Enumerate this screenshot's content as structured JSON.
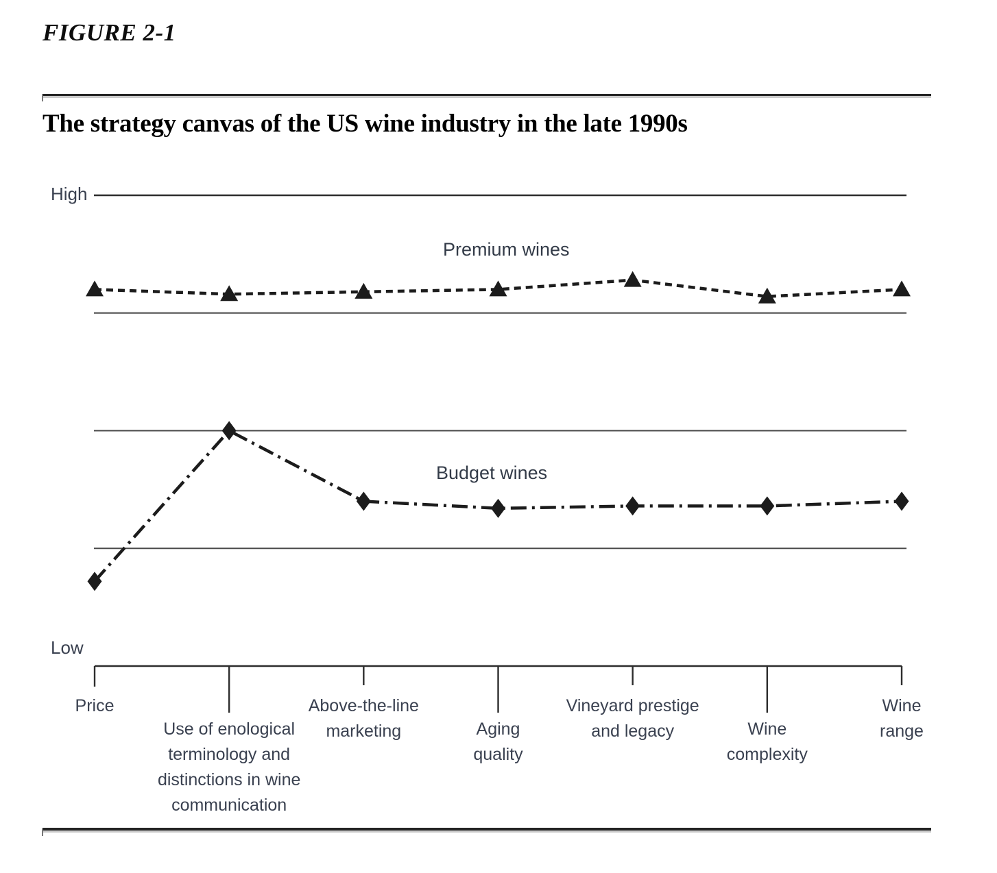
{
  "figure": {
    "label": "FIGURE 2-1",
    "title": "The strategy canvas of the US wine industry in the late 1990s"
  },
  "chart_data": {
    "type": "line",
    "title": "The strategy canvas of the US wine industry in the late 1990s",
    "y_axis": {
      "high_label": "High",
      "low_label": "Low",
      "min": 0,
      "max": 1
    },
    "grid": true,
    "gridlines": [
      0.75,
      0.5,
      0.25
    ],
    "legend_position": "inline-above-series",
    "categories": [
      "Price",
      "Use of enological\nterminology and\ndistinctions in wine\ncommunication",
      "Above-the-line\nmarketing",
      "Aging\nquality",
      "Vineyard prestige\nand legacy",
      "Wine\ncomplexity",
      "Wine\nrange"
    ],
    "series": [
      {
        "name": "Premium wines",
        "marker": "triangle",
        "line_style": "dotted",
        "values": [
          0.8,
          0.79,
          0.795,
          0.8,
          0.82,
          0.785,
          0.8
        ]
      },
      {
        "name": "Budget wines",
        "marker": "diamond",
        "line_style": "dash-dot",
        "values": [
          0.18,
          0.5,
          0.35,
          0.335,
          0.34,
          0.34,
          0.35
        ]
      }
    ],
    "colors": {
      "line": "#1c1c1c",
      "grid": "#4a4a4a",
      "text": "#3a4150"
    }
  }
}
